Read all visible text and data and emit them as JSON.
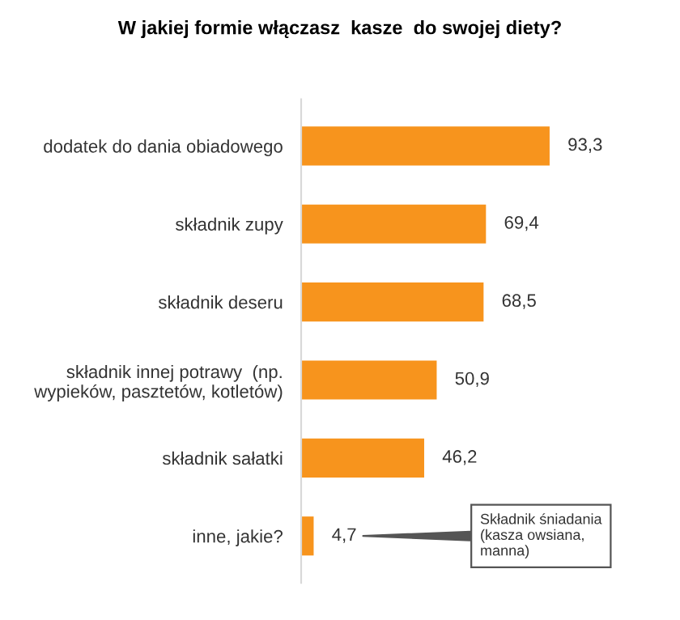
{
  "chart_data": {
    "type": "bar",
    "orientation": "horizontal",
    "title": "W jakiej formie włączasz  kasze  do swojej diety?",
    "categories": [
      "dodatek do dania obiadowego",
      "składnik zupy",
      "składnik deseru",
      "składnik innej potrawy  (np.\nwypieków, pasztetów, kotletów)",
      "składnik sałatki",
      "inne, jakie?"
    ],
    "values": [
      93.3,
      69.4,
      68.5,
      50.9,
      46.2,
      4.7
    ],
    "value_labels": [
      "93,3",
      "69,4",
      "68,5",
      "50,9",
      "46,2",
      "4,7"
    ],
    "color": "#f7941d",
    "annotations": [
      "Składnik śniadania\n(kasza owsiana,\nmanna)"
    ],
    "grid": false,
    "legend": false
  }
}
